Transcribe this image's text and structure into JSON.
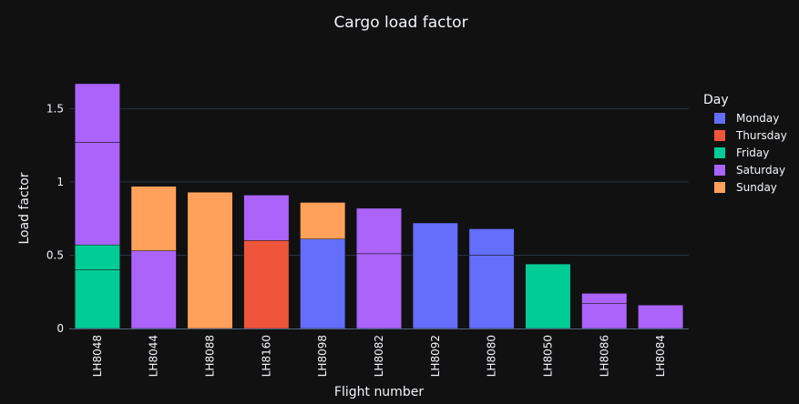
{
  "chart_data": {
    "type": "bar",
    "barmode": "stack",
    "title": "Cargo load factor",
    "xlabel": "Flight number",
    "ylabel": "Load factor",
    "ylim": [
      0,
      1.8
    ],
    "yticks": [
      {
        "value": 0,
        "label": "0"
      },
      {
        "value": 0.5,
        "label": "0.5"
      },
      {
        "value": 1,
        "label": "1"
      },
      {
        "value": 1.5,
        "label": "1.5"
      }
    ],
    "grid": true,
    "legend_title": "Day",
    "legend_position": "right",
    "categories": [
      "LH8048",
      "LH8044",
      "LH8088",
      "LH8160",
      "LH8098",
      "LH8082",
      "LH8092",
      "LH8080",
      "LH8050",
      "LH8086",
      "LH8084"
    ],
    "series": [
      {
        "name": "Monday",
        "color": "#636efa"
      },
      {
        "name": "Thursday",
        "color": "#ef553b"
      },
      {
        "name": "Friday",
        "color": "#00cc96"
      },
      {
        "name": "Saturday",
        "color": "#ab63fa"
      },
      {
        "name": "Sunday",
        "color": "#ffa15a"
      }
    ],
    "segments": [
      {
        "category": "LH8048",
        "series": "Friday",
        "value": 0.4
      },
      {
        "category": "LH8048",
        "series": "Friday",
        "value": 0.17
      },
      {
        "category": "LH8048",
        "series": "Saturday",
        "value": 0.7
      },
      {
        "category": "LH8048",
        "series": "Saturday",
        "value": 0.4
      },
      {
        "category": "LH8044",
        "series": "Saturday",
        "value": 0.53
      },
      {
        "category": "LH8044",
        "series": "Sunday",
        "value": 0.44
      },
      {
        "category": "LH8088",
        "series": "Sunday",
        "value": 0.93
      },
      {
        "category": "LH8160",
        "series": "Thursday",
        "value": 0.6
      },
      {
        "category": "LH8160",
        "series": "Saturday",
        "value": 0.31
      },
      {
        "category": "LH8098",
        "series": "Monday",
        "value": 0.61
      },
      {
        "category": "LH8098",
        "series": "Sunday",
        "value": 0.25
      },
      {
        "category": "LH8082",
        "series": "Saturday",
        "value": 0.51
      },
      {
        "category": "LH8082",
        "series": "Saturday",
        "value": 0.31
      },
      {
        "category": "LH8092",
        "series": "Monday",
        "value": 0.72
      },
      {
        "category": "LH8080",
        "series": "Monday",
        "value": 0.5
      },
      {
        "category": "LH8080",
        "series": "Monday",
        "value": 0.18
      },
      {
        "category": "LH8050",
        "series": "Friday",
        "value": 0.44
      },
      {
        "category": "LH8086",
        "series": "Saturday",
        "value": 0.17
      },
      {
        "category": "LH8086",
        "series": "Saturday",
        "value": 0.07
      },
      {
        "category": "LH8084",
        "series": "Saturday",
        "value": 0.16
      }
    ]
  },
  "colors": {
    "background": "#111111",
    "grid": "#283442",
    "axis_line": "#506784",
    "text": "#f2f5fa"
  }
}
